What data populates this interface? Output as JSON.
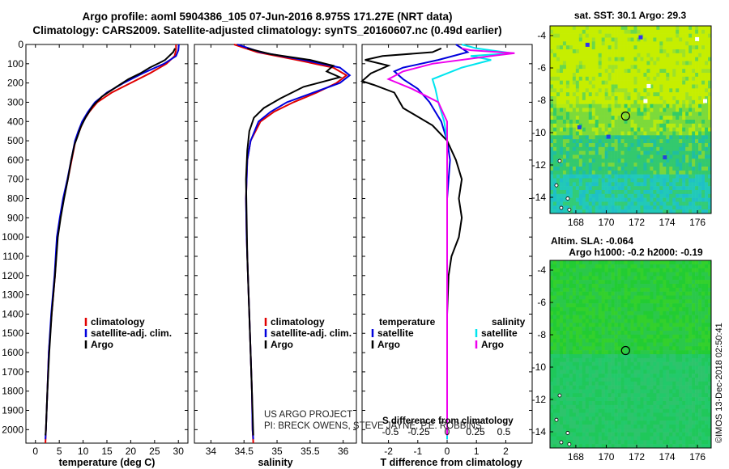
{
  "header": {
    "line1": "Argo profile: aoml 5904386_105 07-Jun-2016 8.975S 171.27E (NRT data)",
    "line2": "Climatology: CARS2009. Satellite-adjusted climatology: synTS_20160607.nc (0.49d earlier)"
  },
  "colors": {
    "climatology": "#e00000",
    "satellite": "#0000dd",
    "argo": "#000000",
    "salinity_sat": "#00e5ee",
    "salinity_argo": "#ee00ee"
  },
  "credit": "©IMOS 13-Dec-2018 02:50:41",
  "project_note": {
    "line1": "US ARGO PROJECT",
    "line2": "PI: BRECK OWENS, STEVE JAYNE, P.E. ROBBINS"
  },
  "chart_data": [
    {
      "id": "temperature",
      "type": "line",
      "xlabel": "temperature (deg C)",
      "ylabel": "",
      "xlim": [
        -2,
        32
      ],
      "ylim": [
        2070,
        0
      ],
      "xticks": [
        "0",
        "5",
        "10",
        "15",
        "20",
        "25",
        "30"
      ],
      "xtick_values": [
        0,
        5,
        10,
        15,
        20,
        25,
        30
      ],
      "yticks": [
        "0",
        "100",
        "200",
        "300",
        "400",
        "500",
        "600",
        "700",
        "800",
        "900",
        "1000",
        "1100",
        "1200",
        "1300",
        "1400",
        "1500",
        "1600",
        "1700",
        "1800",
        "1900",
        "2000"
      ],
      "legend": [
        "climatology",
        "satellite-adj. clim.",
        "Argo"
      ],
      "series": [
        {
          "name": "climatology",
          "color": "#e00000",
          "points": [
            [
              29.5,
              0
            ],
            [
              29.5,
              30
            ],
            [
              29.2,
              60
            ],
            [
              27.5,
              100
            ],
            [
              24,
              150
            ],
            [
              20,
              200
            ],
            [
              16,
              250
            ],
            [
              13,
              300
            ],
            [
              11.3,
              350
            ],
            [
              10,
              400
            ],
            [
              9.2,
              450
            ],
            [
              8.4,
              500
            ],
            [
              7.6,
              600
            ],
            [
              6.8,
              700
            ],
            [
              5.9,
              800
            ],
            [
              5.2,
              900
            ],
            [
              4.6,
              1000
            ],
            [
              4.1,
              1200
            ],
            [
              3.4,
              1400
            ],
            [
              2.8,
              1600
            ],
            [
              2.5,
              1800
            ],
            [
              2.2,
              2000
            ],
            [
              2.1,
              2070
            ]
          ]
        },
        {
          "name": "satellite-adj. clim.",
          "color": "#0000dd",
          "points": [
            [
              30.1,
              0
            ],
            [
              30,
              30
            ],
            [
              29.5,
              60
            ],
            [
              27,
              100
            ],
            [
              22.5,
              150
            ],
            [
              18.5,
              200
            ],
            [
              15,
              250
            ],
            [
              12.5,
              300
            ],
            [
              11,
              350
            ],
            [
              9.8,
              400
            ],
            [
              9,
              450
            ],
            [
              8.3,
              500
            ],
            [
              7.5,
              600
            ],
            [
              6.7,
              700
            ],
            [
              5.8,
              800
            ],
            [
              5.1,
              900
            ],
            [
              4.5,
              1000
            ],
            [
              4,
              1200
            ],
            [
              3.3,
              1400
            ],
            [
              2.8,
              1600
            ],
            [
              2.5,
              1800
            ],
            [
              2.2,
              2000
            ],
            [
              2.1,
              2050
            ]
          ]
        },
        {
          "name": "Argo",
          "color": "#000000",
          "points": [
            [
              29.3,
              20
            ],
            [
              28.9,
              40
            ],
            [
              27.2,
              80
            ],
            [
              26.5,
              90
            ],
            [
              24,
              120
            ],
            [
              22,
              150
            ],
            [
              19.5,
              180
            ],
            [
              17,
              220
            ],
            [
              14,
              270
            ],
            [
              12,
              320
            ],
            [
              10.5,
              380
            ],
            [
              9.5,
              430
            ],
            [
              8.8,
              480
            ],
            [
              8.2,
              520
            ],
            [
              7.5,
              600
            ],
            [
              6.8,
              700
            ],
            [
              6,
              800
            ],
            [
              5.3,
              900
            ],
            [
              4.7,
              1000
            ],
            [
              4.1,
              1200
            ],
            [
              3.4,
              1400
            ],
            [
              2.9,
              1600
            ],
            [
              2.5,
              1800
            ],
            [
              2.2,
              2000
            ],
            [
              2.1,
              2030
            ]
          ]
        }
      ]
    },
    {
      "id": "salinity",
      "type": "line",
      "xlabel": "salinity",
      "ylabel": "",
      "xlim": [
        33.75,
        36.2
      ],
      "ylim": [
        2070,
        0
      ],
      "xticks": [
        "34",
        "34.5",
        "35",
        "35.5",
        "36"
      ],
      "xtick_values": [
        34,
        34.5,
        35,
        35.5,
        36
      ],
      "legend": [
        "climatology",
        "satellite-adj. clim.",
        "Argo"
      ],
      "series": [
        {
          "name": "climatology",
          "color": "#e00000",
          "points": [
            [
              34.35,
              0
            ],
            [
              34.7,
              40
            ],
            [
              35.3,
              80
            ],
            [
              35.85,
              120
            ],
            [
              36.05,
              160
            ],
            [
              35.9,
              200
            ],
            [
              35.6,
              250
            ],
            [
              35.25,
              300
            ],
            [
              34.95,
              350
            ],
            [
              34.75,
              400
            ],
            [
              34.6,
              500
            ],
            [
              34.55,
              600
            ],
            [
              34.53,
              800
            ],
            [
              34.54,
              1000
            ],
            [
              34.56,
              1200
            ],
            [
              34.58,
              1400
            ],
            [
              34.6,
              1600
            ],
            [
              34.62,
              1800
            ],
            [
              34.63,
              2000
            ],
            [
              34.64,
              2070
            ]
          ]
        },
        {
          "name": "satellite-adj. clim.",
          "color": "#0000dd",
          "points": [
            [
              34.4,
              0
            ],
            [
              34.75,
              40
            ],
            [
              35.4,
              80
            ],
            [
              35.95,
              120
            ],
            [
              36.1,
              160
            ],
            [
              35.95,
              200
            ],
            [
              35.55,
              250
            ],
            [
              35.15,
              300
            ],
            [
              34.9,
              350
            ],
            [
              34.72,
              400
            ],
            [
              34.6,
              500
            ],
            [
              34.55,
              600
            ],
            [
              34.53,
              800
            ],
            [
              34.54,
              1000
            ],
            [
              34.56,
              1200
            ],
            [
              34.58,
              1400
            ],
            [
              34.6,
              1600
            ],
            [
              34.62,
              1800
            ],
            [
              34.63,
              2000
            ],
            [
              34.64,
              2050
            ]
          ]
        },
        {
          "name": "Argo",
          "color": "#000000",
          "points": [
            [
              34.55,
              20
            ],
            [
              34.9,
              50
            ],
            [
              35.5,
              80
            ],
            [
              35.85,
              110
            ],
            [
              35.75,
              140
            ],
            [
              35.95,
              170
            ],
            [
              35.4,
              220
            ],
            [
              35.05,
              280
            ],
            [
              34.8,
              330
            ],
            [
              34.65,
              380
            ],
            [
              34.58,
              450
            ],
            [
              34.55,
              550
            ],
            [
              34.53,
              700
            ],
            [
              34.54,
              900
            ],
            [
              34.55,
              1100
            ],
            [
              34.57,
              1300
            ],
            [
              34.59,
              1500
            ],
            [
              34.61,
              1700
            ],
            [
              34.63,
              1900
            ],
            [
              34.64,
              2030
            ]
          ]
        }
      ]
    },
    {
      "id": "differences",
      "type": "line",
      "xlabel": "T difference from climatology",
      "title_inner": "S difference from climatology",
      "xlim": [
        -2.9,
        2.9
      ],
      "ylim": [
        2070,
        0
      ],
      "xticks": [
        "-2",
        "-1",
        "0",
        "1",
        "2"
      ],
      "xtick_values": [
        -2,
        -1,
        0,
        1,
        2
      ],
      "sticks": [
        "-0.5",
        "-0.25",
        "0",
        "0.25",
        "0.5"
      ],
      "stick_values": [
        -0.5,
        -0.25,
        0,
        0.25,
        0.5
      ],
      "legend_left_title": "temperature",
      "legend_right_title": "salinity",
      "legend": [
        "satellite",
        "Argo",
        "satellite",
        "Argo"
      ],
      "series": [
        {
          "name": "T satellite",
          "color": "#0000dd",
          "points": [
            [
              0.3,
              0
            ],
            [
              0.7,
              40
            ],
            [
              -0.3,
              80
            ],
            [
              -1.5,
              120
            ],
            [
              -1.8,
              140
            ],
            [
              -1.5,
              180
            ],
            [
              -1,
              230
            ],
            [
              -0.6,
              300
            ],
            [
              -0.4,
              350
            ],
            [
              -0.2,
              400
            ],
            [
              0,
              500
            ],
            [
              0.1,
              600
            ],
            [
              0.05,
              700
            ],
            [
              0,
              800
            ],
            [
              0,
              1000
            ],
            [
              0,
              1500
            ],
            [
              0,
              2050
            ]
          ]
        },
        {
          "name": "T Argo",
          "color": "#000000",
          "points": [
            [
              -0.2,
              20
            ],
            [
              -0.5,
              40
            ],
            [
              -2.2,
              60
            ],
            [
              -2.8,
              80
            ],
            [
              -2,
              110
            ],
            [
              -2.6,
              150
            ],
            [
              -2.9,
              190
            ],
            [
              -2.5,
              210
            ],
            [
              -1.8,
              250
            ],
            [
              -1.5,
              330
            ],
            [
              -0.5,
              420
            ],
            [
              0,
              500
            ],
            [
              0.3,
              600
            ],
            [
              0.5,
              700
            ],
            [
              0.4,
              800
            ],
            [
              0.5,
              900
            ],
            [
              0.4,
              1000
            ],
            [
              0.15,
              1100
            ],
            [
              0.05,
              1200
            ],
            [
              0,
              1400
            ],
            [
              0,
              2030
            ]
          ]
        },
        {
          "name": "S satellite",
          "color": "#00e5ee",
          "points": [
            [
              0.5,
              0
            ],
            [
              1,
              20
            ],
            [
              2.2,
              45
            ],
            [
              0.8,
              60
            ],
            [
              1.5,
              80
            ],
            [
              0.5,
              120
            ],
            [
              -0.5,
              180
            ],
            [
              -0.4,
              230
            ],
            [
              -0.3,
              300
            ],
            [
              -0.1,
              400
            ],
            [
              0,
              500
            ],
            [
              0,
              700
            ],
            [
              0,
              1000
            ],
            [
              0,
              1500
            ],
            [
              0,
              2050
            ]
          ]
        },
        {
          "name": "S Argo",
          "color": "#ee00ee",
          "points": [
            [
              0.5,
              20
            ],
            [
              0.8,
              30
            ],
            [
              2.3,
              45
            ],
            [
              1.5,
              60
            ],
            [
              -0.5,
              100
            ],
            [
              -1.5,
              140
            ],
            [
              -2,
              180
            ],
            [
              -1.2,
              230
            ],
            [
              -0.3,
              300
            ],
            [
              0,
              400
            ],
            [
              0,
              500
            ],
            [
              0,
              700
            ],
            [
              0,
              1000
            ],
            [
              0,
              2030
            ]
          ]
        }
      ]
    },
    {
      "id": "sst_map",
      "type": "heatmap",
      "title": "sat. SST: 30.1  Argo: 29.3",
      "xticks": [
        "168",
        "170",
        "172",
        "174",
        "176"
      ],
      "yticks": [
        "-4",
        "-6",
        "-8",
        "-10",
        "-12",
        "-14"
      ],
      "xlim": [
        166.3,
        176.9
      ],
      "ylim": [
        -15,
        -3.4
      ],
      "marker": [
        171.27,
        -8.975
      ]
    },
    {
      "id": "sla_map",
      "type": "heatmap",
      "title_line1": "Altim. SLA: -0.064",
      "title_line2": "Argo h1000: -0.2  h2000: -0.19",
      "xticks": [
        "168",
        "170",
        "172",
        "174",
        "176"
      ],
      "yticks": [
        "-4",
        "-6",
        "-8",
        "-10",
        "-12",
        "-14"
      ],
      "xlim": [
        166.3,
        176.9
      ],
      "ylim": [
        -15,
        -3.4
      ],
      "marker": [
        171.27,
        -8.975
      ]
    }
  ]
}
